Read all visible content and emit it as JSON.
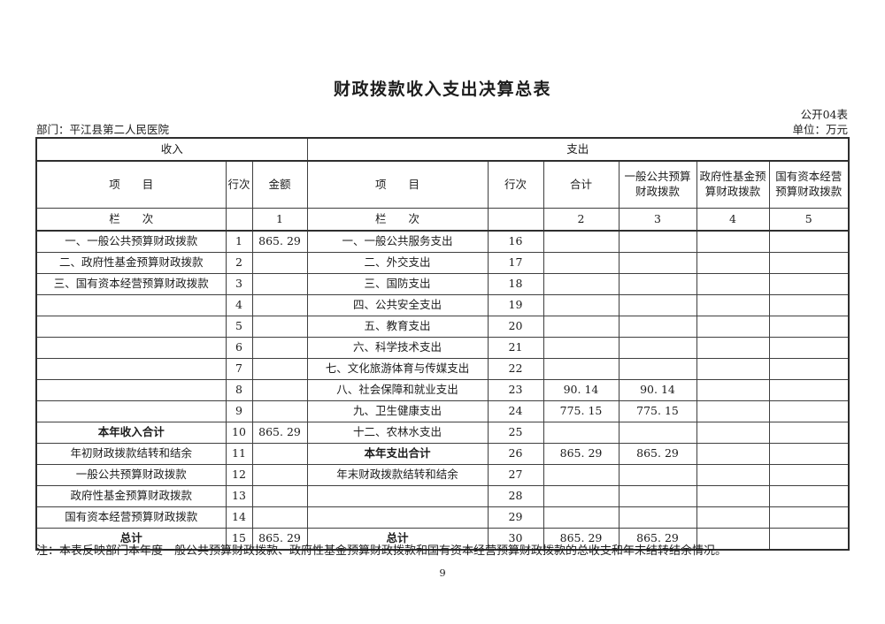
{
  "doc": {
    "title": "财政拨款收入支出决算总表",
    "table_code": "公开04表",
    "department_label": "部门：平江县第二人民医院",
    "unit_label": "单位：万元",
    "note": "注：本表反映部门本年度一般公共预算财政拨款、政府性基金预算财政拨款和国有资本经营预算财政拨款的总收支和年末结转结余情况。",
    "page_number": "9"
  },
  "table": {
    "sections": {
      "income": "收入",
      "expense": "支出"
    },
    "headers": {
      "income_item": "项　　目",
      "income_line": "行次",
      "income_amount": "金额",
      "expense_item": "项　　目",
      "expense_line": "行次",
      "expense_total": "合计",
      "expense_general_budget": "一般公共预算财政拨款",
      "expense_gov_fund": "政府性基金预算财政拨款",
      "expense_state_capital": "国有资本经营预算财政拨款"
    },
    "column_index_row": {
      "income_label": "栏　　次",
      "income_line": "",
      "income_amount": "1",
      "expense_label": "栏　　次",
      "expense_line": "",
      "expense_total": "2",
      "expense_general_budget": "3",
      "expense_gov_fund": "4",
      "expense_state_capital": "5"
    },
    "rows": [
      {
        "i_item": "一、一般公共预算财政拨款",
        "i_style": "item",
        "i_line": "1",
        "i_amt": "865. 29",
        "e_item": "一、一般公共服务支出",
        "e_style": "item",
        "e_line": "16",
        "e_total": "",
        "e_gen": "",
        "e_fund": "",
        "e_cap": ""
      },
      {
        "i_item": "二、政府性基金预算财政拨款",
        "i_style": "item",
        "i_line": "2",
        "i_amt": "",
        "e_item": "二、外交支出",
        "e_style": "item",
        "e_line": "17",
        "e_total": "",
        "e_gen": "",
        "e_fund": "",
        "e_cap": ""
      },
      {
        "i_item": "三、国有资本经营预算财政拨款",
        "i_style": "item",
        "i_line": "3",
        "i_amt": "",
        "e_item": "三、国防支出",
        "e_style": "item",
        "e_line": "18",
        "e_total": "",
        "e_gen": "",
        "e_fund": "",
        "e_cap": ""
      },
      {
        "i_item": "",
        "i_style": "",
        "i_line": "4",
        "i_amt": "",
        "e_item": "四、公共安全支出",
        "e_style": "item",
        "e_line": "19",
        "e_total": "",
        "e_gen": "",
        "e_fund": "",
        "e_cap": ""
      },
      {
        "i_item": "",
        "i_style": "",
        "i_line": "5",
        "i_amt": "",
        "e_item": "五、教育支出",
        "e_style": "item",
        "e_line": "20",
        "e_total": "",
        "e_gen": "",
        "e_fund": "",
        "e_cap": ""
      },
      {
        "i_item": "",
        "i_style": "",
        "i_line": "6",
        "i_amt": "",
        "e_item": "六、科学技术支出",
        "e_style": "item",
        "e_line": "21",
        "e_total": "",
        "e_gen": "",
        "e_fund": "",
        "e_cap": ""
      },
      {
        "i_item": "",
        "i_style": "",
        "i_line": "7",
        "i_amt": "",
        "e_item": "七、文化旅游体育与传媒支出",
        "e_style": "item",
        "e_line": "22",
        "e_total": "",
        "e_gen": "",
        "e_fund": "",
        "e_cap": ""
      },
      {
        "i_item": "",
        "i_style": "",
        "i_line": "8",
        "i_amt": "",
        "e_item": "八、社会保障和就业支出",
        "e_style": "item",
        "e_line": "23",
        "e_total": "90. 14",
        "e_gen": "90. 14",
        "e_fund": "",
        "e_cap": ""
      },
      {
        "i_item": "",
        "i_style": "",
        "i_line": "9",
        "i_amt": "",
        "e_item": "九、卫生健康支出",
        "e_style": "item",
        "e_line": "24",
        "e_total": "775. 15",
        "e_gen": "775. 15",
        "e_fund": "",
        "e_cap": ""
      },
      {
        "i_item": "本年收入合计",
        "i_style": "total",
        "i_line": "10",
        "i_amt": "865. 29",
        "e_item": "十二、农林水支出",
        "e_style": "item",
        "e_line": "25",
        "e_total": "",
        "e_gen": "",
        "e_fund": "",
        "e_cap": ""
      },
      {
        "i_item": "年初财政拨款结转和结余",
        "i_style": "summary",
        "i_line": "11",
        "i_amt": "",
        "e_item": "本年支出合计",
        "e_style": "total",
        "e_line": "26",
        "e_total": "865. 29",
        "e_gen": "865. 29",
        "e_fund": "",
        "e_cap": ""
      },
      {
        "i_item": "一般公共预算财政拨款",
        "i_style": "summary",
        "i_line": "12",
        "i_amt": "",
        "e_item": "年末财政拨款结转和结余",
        "e_style": "summary",
        "e_line": "27",
        "e_total": "",
        "e_gen": "",
        "e_fund": "",
        "e_cap": ""
      },
      {
        "i_item": "政府性基金预算财政拨款",
        "i_style": "summary",
        "i_line": "13",
        "i_amt": "",
        "e_item": "",
        "e_style": "",
        "e_line": "28",
        "e_total": "",
        "e_gen": "",
        "e_fund": "",
        "e_cap": ""
      },
      {
        "i_item": "国有资本经营预算财政拨款",
        "i_style": "summary",
        "i_line": "14",
        "i_amt": "",
        "e_item": "",
        "e_style": "",
        "e_line": "29",
        "e_total": "",
        "e_gen": "",
        "e_fund": "",
        "e_cap": ""
      },
      {
        "i_item": "总计",
        "i_style": "total",
        "i_line": "15",
        "i_amt": "865. 29",
        "e_item": "总计",
        "e_style": "total",
        "e_line": "30",
        "e_total": "865. 29",
        "e_gen": "865. 29",
        "e_fund": "",
        "e_cap": ""
      }
    ]
  }
}
